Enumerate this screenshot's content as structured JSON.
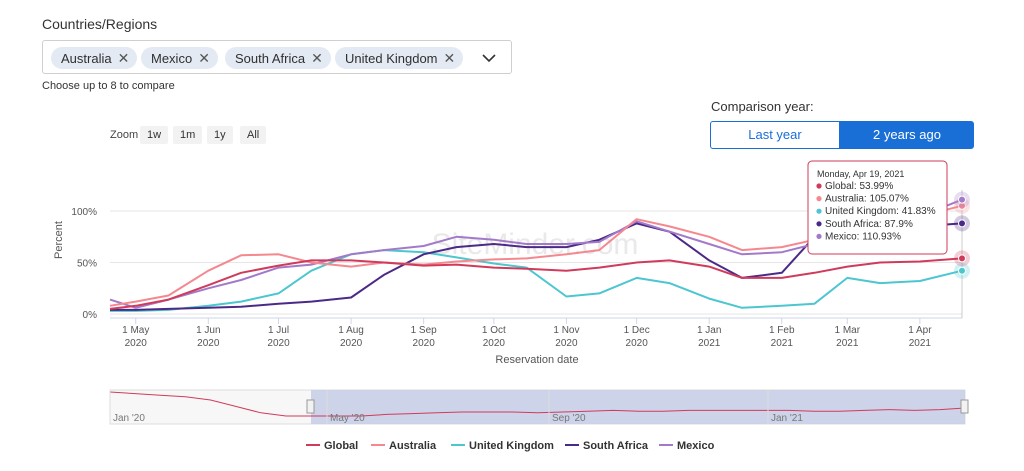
{
  "filter": {
    "label": "Countries/Regions",
    "chips": [
      "Australia",
      "Mexico",
      "South Africa",
      "United Kingdom"
    ],
    "hint": "Choose up to 8 to compare"
  },
  "comparison": {
    "label": "Comparison year:",
    "options": [
      "Last year",
      "2 years ago"
    ],
    "selected": "2 years ago"
  },
  "zoom": {
    "label": "Zoom",
    "buttons": [
      "1w",
      "1m",
      "1y",
      "All"
    ]
  },
  "watermark": "SiteMinder.com",
  "navigator": {
    "labels": [
      "Jan '20",
      "May '20",
      "Sep '20",
      "Jan '21"
    ]
  },
  "tooltip": {
    "date": "Monday, Apr 19, 2021",
    "lines": [
      "Global: 53.99%",
      "Australia: 105.07%",
      "United Kingdom: 41.83%",
      "South Africa: 87.9%",
      "Mexico: 110.93%"
    ]
  },
  "colors": {
    "Global": "#d03b5b",
    "Australia": "#f5888f",
    "United Kingdom": "#4cc6cf",
    "South Africa": "#4b2a87",
    "Mexico": "#a37ac9",
    "accent": "#1a6fd6"
  },
  "chart_data": {
    "type": "line",
    "title": "",
    "xlabel": "Reservation date",
    "ylabel": "Percent",
    "y_ticks": [
      "0%",
      "50%",
      "100%"
    ],
    "ylim": [
      0,
      100
    ],
    "x_ticks": [
      {
        "date": "2020-05-01",
        "label": [
          "1 May",
          "2020"
        ]
      },
      {
        "date": "2020-06-01",
        "label": [
          "1 Jun",
          "2020"
        ]
      },
      {
        "date": "2020-07-01",
        "label": [
          "1 Jul",
          "2020"
        ]
      },
      {
        "date": "2020-08-01",
        "label": [
          "1 Aug",
          "2020"
        ]
      },
      {
        "date": "2020-09-01",
        "label": [
          "1 Sep",
          "2020"
        ]
      },
      {
        "date": "2020-10-01",
        "label": [
          "1 Oct",
          "2020"
        ]
      },
      {
        "date": "2020-11-01",
        "label": [
          "1 Nov",
          "2020"
        ]
      },
      {
        "date": "2020-12-01",
        "label": [
          "1 Dec",
          "2020"
        ]
      },
      {
        "date": "2021-01-01",
        "label": [
          "1 Jan",
          "2021"
        ]
      },
      {
        "date": "2021-02-01",
        "label": [
          "1 Feb",
          "2021"
        ]
      },
      {
        "date": "2021-03-01",
        "label": [
          "1 Mar",
          "2021"
        ]
      },
      {
        "date": "2021-04-01",
        "label": [
          "1 Apr",
          "2021"
        ]
      }
    ],
    "x": [
      "2020-04-20",
      "2020-05-01",
      "2020-05-15",
      "2020-06-01",
      "2020-06-15",
      "2020-07-01",
      "2020-07-15",
      "2020-08-01",
      "2020-08-15",
      "2020-09-01",
      "2020-09-15",
      "2020-10-01",
      "2020-10-15",
      "2020-11-01",
      "2020-11-15",
      "2020-12-01",
      "2020-12-15",
      "2021-01-01",
      "2021-01-15",
      "2021-02-01",
      "2021-02-15",
      "2021-03-01",
      "2021-03-15",
      "2021-04-01",
      "2021-04-19"
    ],
    "series": [
      {
        "name": "Global",
        "values": [
          5,
          8,
          14,
          28,
          40,
          47,
          52,
          52,
          50,
          47,
          48,
          45,
          44,
          42,
          45,
          50,
          52,
          46,
          35,
          35,
          40,
          46,
          50,
          51,
          54
        ]
      },
      {
        "name": "Australia",
        "values": [
          8,
          12,
          18,
          42,
          57,
          58,
          50,
          46,
          50,
          48,
          51,
          53,
          54,
          58,
          62,
          92,
          85,
          75,
          62,
          65,
          72,
          78,
          85,
          95,
          105
        ]
      },
      {
        "name": "United Kingdom",
        "values": [
          3,
          3,
          4,
          8,
          12,
          20,
          42,
          58,
          62,
          60,
          55,
          49,
          45,
          17,
          20,
          35,
          30,
          15,
          6,
          8,
          10,
          35,
          30,
          32,
          42
        ]
      },
      {
        "name": "South Africa",
        "values": [
          4,
          4,
          5,
          6,
          7,
          10,
          12,
          16,
          38,
          58,
          65,
          68,
          65,
          65,
          72,
          88,
          80,
          52,
          35,
          40,
          75,
          85,
          80,
          85,
          88
        ]
      },
      {
        "name": "Mexico",
        "values": [
          14,
          6,
          14,
          25,
          33,
          45,
          48,
          58,
          62,
          66,
          75,
          72,
          68,
          68,
          70,
          90,
          80,
          68,
          58,
          60,
          68,
          75,
          78,
          95,
          111
        ]
      }
    ],
    "legend": {
      "placement": "bottom",
      "entries": [
        "Global",
        "Australia",
        "United Kingdom",
        "South Africa",
        "Mexico"
      ]
    },
    "navigator_values": [
      40,
      38,
      36,
      34,
      30,
      22,
      14,
      10,
      10,
      10,
      10,
      12,
      13,
      14,
      15,
      15,
      15,
      14,
      15,
      16,
      17,
      16,
      16,
      17,
      17,
      17,
      17,
      17,
      16,
      16,
      17,
      18,
      17,
      18,
      20
    ]
  }
}
